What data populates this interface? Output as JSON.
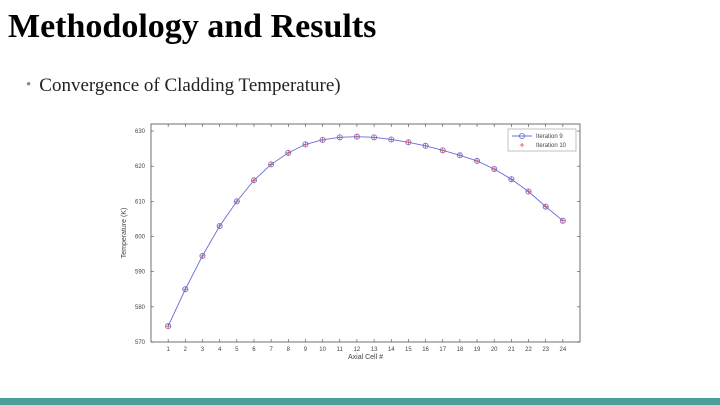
{
  "slide": {
    "title": "Methodology and Results",
    "bullet": "Convergence of Cladding Temperature)"
  },
  "colors": {
    "accent_bar": "#4a9e9c",
    "series_1": "#6b6bd6",
    "series_2": "#d9534f"
  },
  "chart_data": {
    "type": "line",
    "title": "",
    "xlabel": "Axial Cell #",
    "ylabel": "Temperature (K)",
    "xlim": [
      0,
      25
    ],
    "ylim": [
      570,
      632
    ],
    "x_ticks": [
      1,
      2,
      3,
      4,
      5,
      6,
      7,
      8,
      9,
      10,
      11,
      12,
      13,
      14,
      15,
      16,
      17,
      18,
      19,
      20,
      21,
      22,
      23,
      24
    ],
    "y_ticks": [
      570,
      580,
      590,
      600,
      610,
      620,
      630
    ],
    "grid": false,
    "legend_position": "top-right",
    "x": [
      1,
      2,
      3,
      4,
      5,
      6,
      7,
      8,
      9,
      10,
      11,
      12,
      13,
      14,
      15,
      16,
      17,
      18,
      19,
      20,
      21,
      22,
      23,
      24
    ],
    "series": [
      {
        "name": "Iteration 9",
        "marker": "circle",
        "values": [
          574.5,
          585,
          594.5,
          603,
          610,
          616,
          620.5,
          623.8,
          626.2,
          627.5,
          628.2,
          628.4,
          628.2,
          627.6,
          626.8,
          625.8,
          624.5,
          623.1,
          621.5,
          619.2,
          616.3,
          612.8,
          608.5,
          604.5
        ]
      },
      {
        "name": "Iteration 10",
        "marker": "plus",
        "values": [
          574.5,
          585,
          594.5,
          603,
          610,
          616,
          620.5,
          623.8,
          626.2,
          627.5,
          628.2,
          628.4,
          628.2,
          627.6,
          626.8,
          625.8,
          624.5,
          623.1,
          621.5,
          619.2,
          616.3,
          612.8,
          608.5,
          604.5
        ]
      }
    ]
  }
}
